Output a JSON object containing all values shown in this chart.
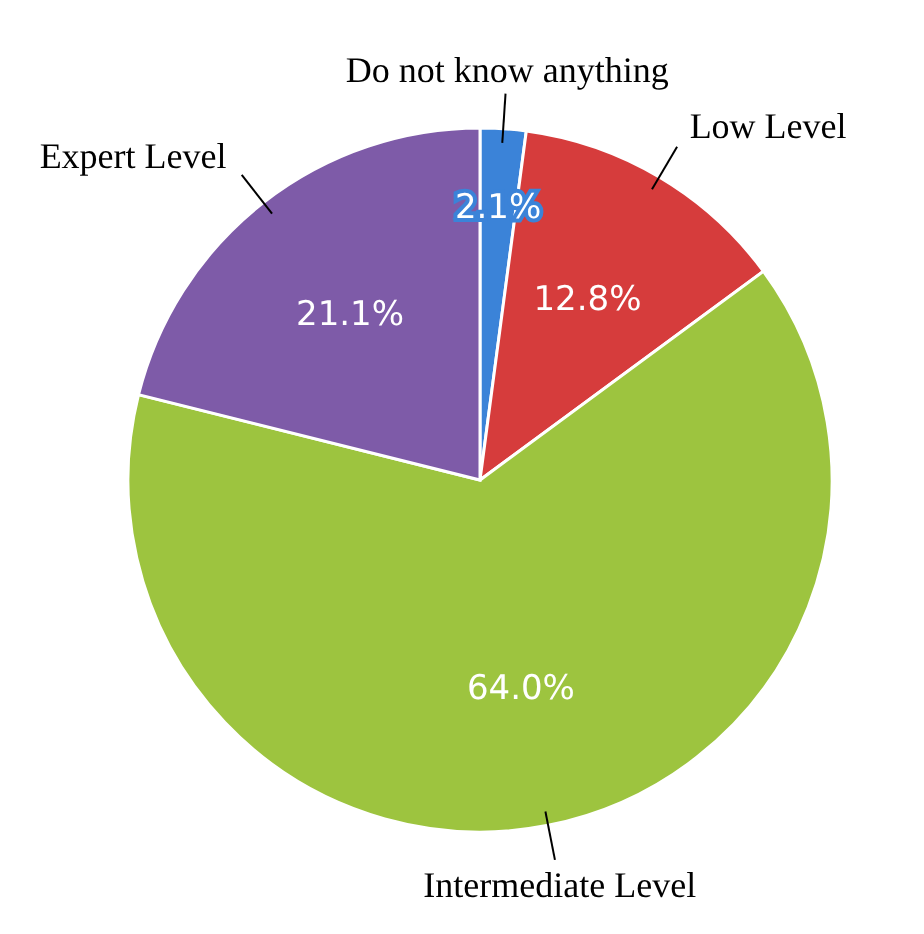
{
  "chart_data": {
    "type": "pie",
    "categories": [
      "Do not know anything",
      "Low Level",
      "Intermediate Level",
      "Expert Level"
    ],
    "values": [
      2.1,
      12.8,
      64.0,
      21.1
    ],
    "colors": [
      "#3b83d8",
      "#d63c3c",
      "#9dc43f",
      "#7e5ba8"
    ],
    "value_labels": [
      "2.1%",
      "12.8%",
      "64.0%",
      "21.1%"
    ]
  }
}
